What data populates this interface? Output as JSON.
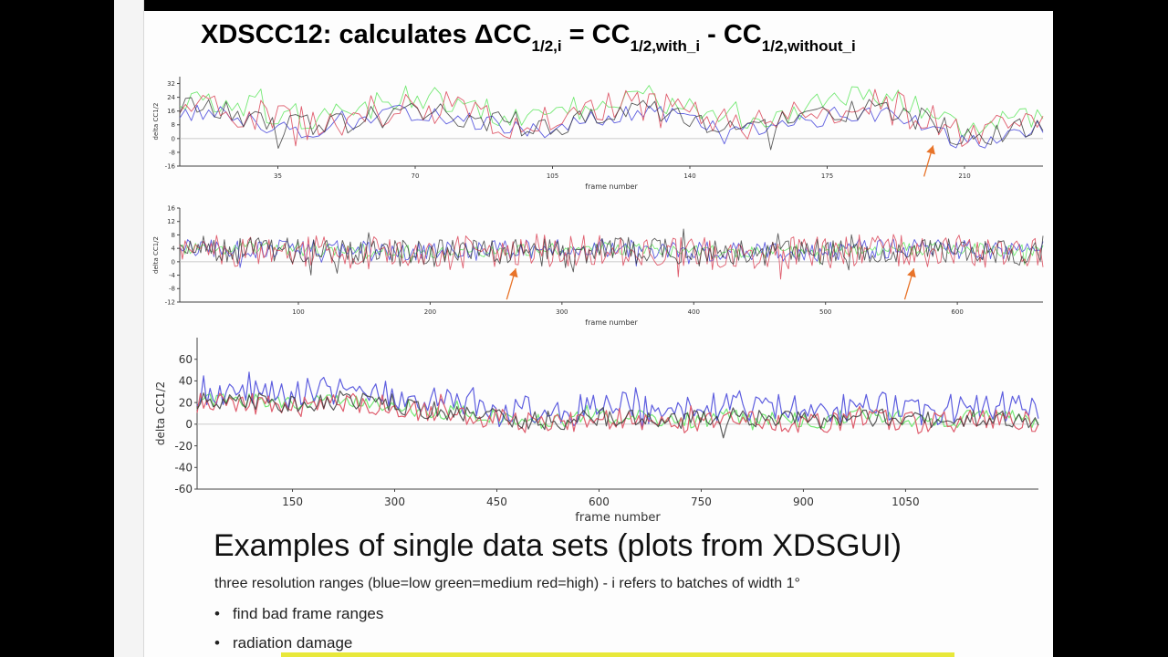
{
  "title": {
    "main": "XDSCC12: calculates ΔCC",
    "sub1": "1/2,i",
    "eq": " = CC",
    "sub2": "1/2,with_i",
    "minus": " - CC",
    "sub3": "1/2,without_i"
  },
  "heading": "Examples of single data sets (plots from XDSGUI)",
  "subtitle": "three resolution ranges (blue=low green=medium red=high) - i refers to batches of width 1°",
  "bullets": [
    {
      "marker": "•",
      "text": "find bad frame ranges"
    },
    {
      "marker": "•",
      "text": "radiation damage"
    }
  ],
  "colors": {
    "low": "#5555dd",
    "medium": "#6ee86e",
    "high": "#dd5566",
    "dark": "#333333",
    "arrow": "#e8742a",
    "highlight": "#e8e83a"
  },
  "chart_data": [
    {
      "type": "line",
      "xlabel": "frame number",
      "ylabel": "delta CC1/2",
      "xlim": [
        10,
        230
      ],
      "ylim": [
        -16,
        36
      ],
      "xticks": [
        35,
        70,
        105,
        140,
        175,
        210
      ],
      "yticks": [
        -16,
        -8,
        0,
        8,
        16,
        24,
        32
      ],
      "grid": false,
      "series_names": [
        "low",
        "medium",
        "high",
        "dark"
      ],
      "annotations": [
        {
          "type": "arrow",
          "x": 202,
          "y": -4
        }
      ]
    },
    {
      "type": "line",
      "xlabel": "frame number",
      "ylabel": "delta CC1/2",
      "xlim": [
        10,
        665
      ],
      "ylim": [
        -12,
        16
      ],
      "xticks": [
        100,
        200,
        300,
        400,
        500,
        600
      ],
      "yticks": [
        -12,
        -8,
        -4,
        0,
        4,
        8,
        12,
        16
      ],
      "grid": false,
      "series_names": [
        "low",
        "medium",
        "high",
        "dark"
      ],
      "annotations": [
        {
          "type": "arrow",
          "x": 265,
          "y": -2
        },
        {
          "type": "arrow",
          "x": 567,
          "y": -2
        }
      ]
    },
    {
      "type": "line",
      "xlabel": "frame number",
      "ylabel": "delta CC1/2",
      "xlim": [
        10,
        1245
      ],
      "ylim": [
        -60,
        80
      ],
      "xticks": [
        150,
        300,
        450,
        600,
        750,
        900,
        1050
      ],
      "yticks": [
        -60,
        -40,
        -20,
        0,
        20,
        40,
        60
      ],
      "grid": false,
      "series_names": [
        "low",
        "medium",
        "high",
        "dark"
      ]
    }
  ]
}
